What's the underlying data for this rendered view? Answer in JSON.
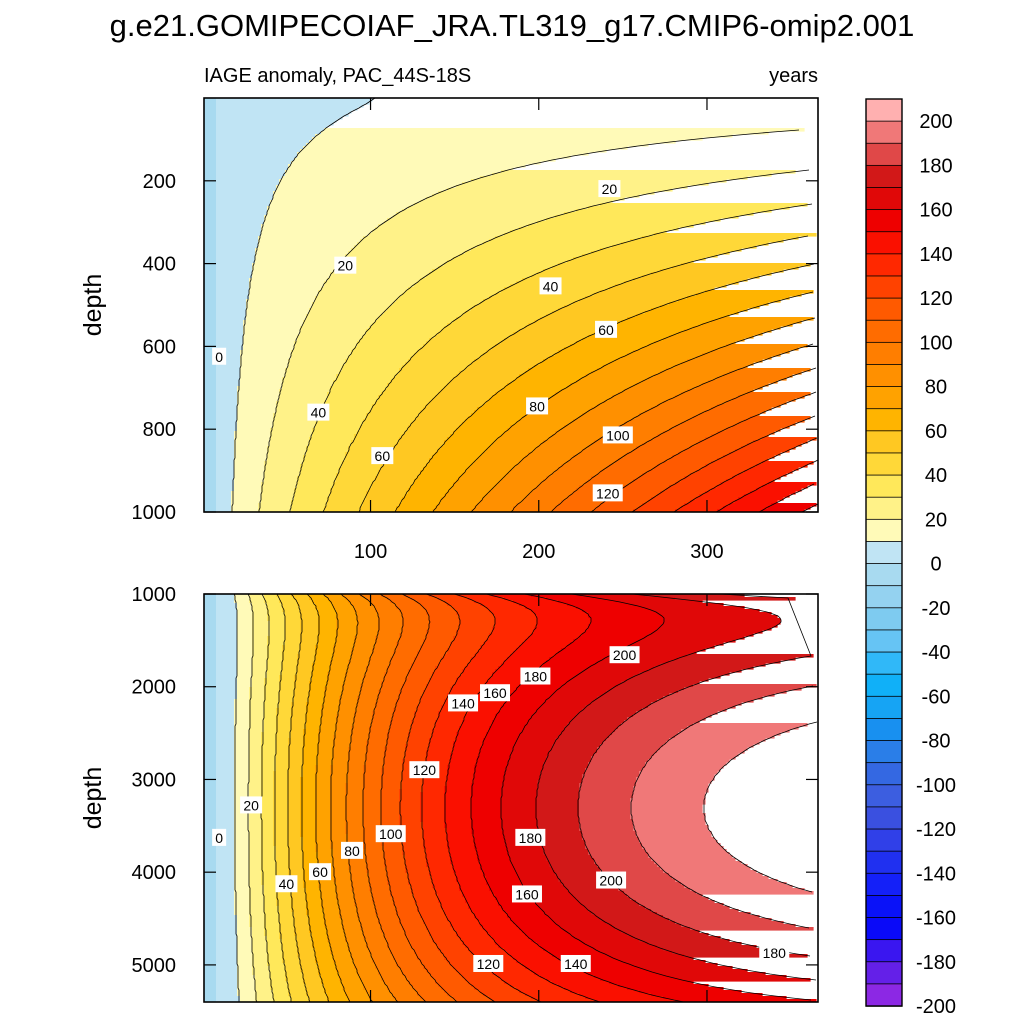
{
  "chart_data": {
    "type": "contour",
    "title": "g.e21.GOMIPECOIAF_JRA.TL319_g17.CMIP6-omip2.001",
    "left_subtitle": "IAGE anomaly, PAC_44S-18S",
    "right_subtitle": "years",
    "x_axis": {
      "range": [
        1,
        366
      ],
      "ticks": [
        100,
        200,
        300
      ],
      "tick_labels": [
        "100",
        "200",
        "300"
      ]
    },
    "colorbar": {
      "levels": [
        -200,
        -190,
        -180,
        -170,
        -160,
        -150,
        -140,
        -130,
        -120,
        -110,
        -100,
        -90,
        -80,
        -70,
        -60,
        -50,
        -40,
        -30,
        -20,
        -10,
        0,
        10,
        20,
        30,
        40,
        50,
        60,
        70,
        80,
        90,
        100,
        110,
        120,
        130,
        140,
        150,
        160,
        170,
        180,
        190,
        200
      ],
      "tick_labels": [
        "200",
        "180",
        "160",
        "140",
        "120",
        "100",
        "80",
        "60",
        "40",
        "20",
        "0",
        "-20",
        "-40",
        "-60",
        "-80",
        "-100",
        "-120",
        "-140",
        "-160",
        "-180",
        "-200"
      ],
      "colors": [
        "#ffb0b0",
        "#f07878",
        "#e04848",
        "#d21818",
        "#e00808",
        "#ee0000",
        "#fa1000",
        "#ff2800",
        "#ff4200",
        "#ff5a00",
        "#ff6c00",
        "#ff7e00",
        "#ff9000",
        "#ffa200",
        "#ffb400",
        "#ffc822",
        "#ffd838",
        "#ffe85a",
        "#fff288",
        "#fffab8",
        "#c0e4f4",
        "#a8daf0",
        "#94d2f0",
        "#7ecbf0",
        "#66c4f4",
        "#30b8f8",
        "#10b0f8",
        "#16a4f4",
        "#1890f0",
        "#2a7ee8",
        "#3468e2",
        "#3c5ee0",
        "#3a50e0",
        "#3040e8",
        "#2030f0",
        "#1420f8",
        "#0a12f8",
        "#0a0af8",
        "#3a16f0",
        "#6420e8",
        "#8c28e4"
      ]
    },
    "panels": [
      {
        "name": "upper",
        "ylabel": "depth",
        "y_range": [
          0,
          1000
        ],
        "y_ticks": [
          200,
          400,
          600,
          800,
          1000
        ],
        "y_tick_labels": [
          "200",
          "400",
          "600",
          "800",
          "1000"
        ],
        "contour_labels": [
          {
            "text": "0",
            "x": 10,
            "y": 625
          },
          {
            "text": "20",
            "x": 85,
            "y": 405
          },
          {
            "text": "20",
            "x": 242,
            "y": 220
          },
          {
            "text": "40",
            "x": 69,
            "y": 760
          },
          {
            "text": "40",
            "x": 207,
            "y": 455
          },
          {
            "text": "60",
            "x": 107,
            "y": 865
          },
          {
            "text": "60",
            "x": 240,
            "y": 560
          },
          {
            "text": "80",
            "x": 199,
            "y": 745
          },
          {
            "text": "100",
            "x": 247,
            "y": 815
          },
          {
            "text": "120",
            "x": 241,
            "y": 955
          }
        ]
      },
      {
        "name": "lower",
        "ylabel": "depth",
        "y_range": [
          1000,
          5400
        ],
        "y_ticks": [
          1000,
          2000,
          3000,
          4000,
          5000
        ],
        "y_tick_labels": [
          "1000",
          "2000",
          "3000",
          "4000",
          "5000"
        ],
        "contour_labels": [
          {
            "text": "0",
            "x": 10,
            "y": 3630
          },
          {
            "text": "20",
            "x": 29,
            "y": 3280
          },
          {
            "text": "40",
            "x": 50,
            "y": 4130
          },
          {
            "text": "60",
            "x": 70,
            "y": 4000
          },
          {
            "text": "80",
            "x": 89,
            "y": 3770
          },
          {
            "text": "100",
            "x": 112,
            "y": 3590
          },
          {
            "text": "120",
            "x": 132,
            "y": 2900
          },
          {
            "text": "140",
            "x": 155,
            "y": 2180
          },
          {
            "text": "160",
            "x": 174,
            "y": 2070
          },
          {
            "text": "180",
            "x": 198,
            "y": 1890
          },
          {
            "text": "200",
            "x": 251,
            "y": 1660
          },
          {
            "text": "180",
            "x": 195,
            "y": 3630
          },
          {
            "text": "200",
            "x": 243,
            "y": 4090
          },
          {
            "text": "160",
            "x": 193,
            "y": 4240
          },
          {
            "text": "140",
            "x": 222,
            "y": 4990
          },
          {
            "text": "120",
            "x": 170,
            "y": 4990
          },
          {
            "text": "180",
            "x": 340,
            "y": 4870
          }
        ]
      }
    ]
  }
}
